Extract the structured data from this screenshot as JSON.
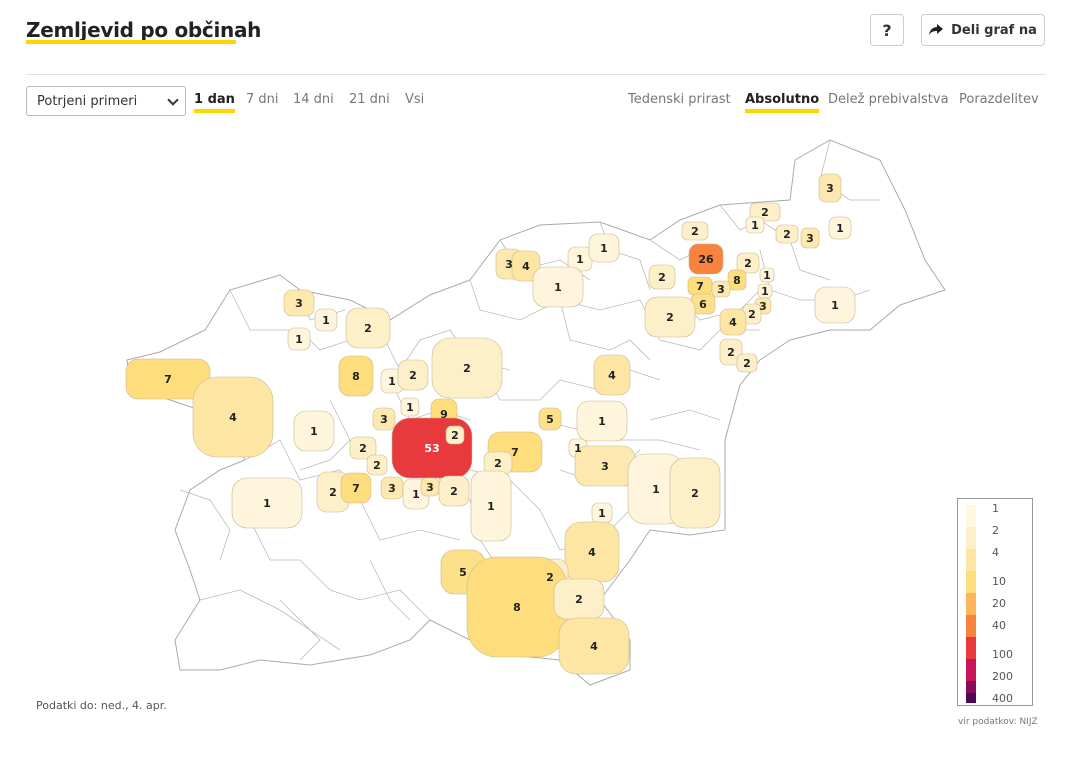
{
  "header": {
    "title": "Zemljevid po občinah",
    "help_label": "?",
    "share_label": "Deli graf na"
  },
  "controls": {
    "select_value": "Potrjeni primeri",
    "periods": [
      "1 dan",
      "7 dni",
      "14 dni",
      "21 dni",
      "Vsi"
    ],
    "active_period": "1 dan",
    "modes": [
      "Tedenski prirast",
      "Absolutno",
      "Delež prebivalstva",
      "Porazdelitev"
    ],
    "active_mode": "Absolutno"
  },
  "legend": {
    "labels": [
      "1",
      "2",
      "4",
      "10",
      "20",
      "40",
      "100",
      "200",
      "400"
    ],
    "colors": [
      "#fff7e0",
      "#fdf0c8",
      "#fde6a3",
      "#fedd7c",
      "#fdb75a",
      "#f8833e",
      "#e83a3c",
      "#c8145a",
      "#8a0a5c",
      "#4a0a55"
    ]
  },
  "footer": {
    "data_date": "Podatki do: ned., 4. apr.",
    "source": "vir podatkov: NIJZ"
  },
  "map_values": [
    {
      "v": "3",
      "c": "#fde9b0"
    },
    {
      "v": "2",
      "c": "#fdf0c8"
    },
    {
      "v": "1",
      "c": "#fff4dc"
    },
    {
      "v": "2",
      "c": "#fdf0c8"
    },
    {
      "v": "3",
      "c": "#fde9b0"
    },
    {
      "v": "1",
      "c": "#fff4dc"
    },
    {
      "v": "2",
      "c": "#fdf0c8"
    },
    {
      "v": "26",
      "c": "#f8833e"
    },
    {
      "v": "2",
      "c": "#fdf0c8"
    },
    {
      "v": "8",
      "c": "#fedd7c"
    },
    {
      "v": "7",
      "c": "#fedd7c"
    },
    {
      "v": "3",
      "c": "#fde9b0"
    },
    {
      "v": "1",
      "c": "#fff4dc"
    },
    {
      "v": "1",
      "c": "#fff4dc"
    },
    {
      "v": "3",
      "c": "#fde9b0"
    },
    {
      "v": "6",
      "c": "#fde08a"
    },
    {
      "v": "2",
      "c": "#fdf0c8"
    },
    {
      "v": "4",
      "c": "#fde6a3"
    },
    {
      "v": "2",
      "c": "#fdf0c8"
    },
    {
      "v": "2",
      "c": "#fdf0c8"
    },
    {
      "v": "1",
      "c": "#fff4dc"
    },
    {
      "v": "2",
      "c": "#fdf0c8"
    },
    {
      "v": "2",
      "c": "#fdf0c8"
    },
    {
      "v": "3",
      "c": "#fde9b0"
    },
    {
      "v": "4",
      "c": "#fde6a3"
    },
    {
      "v": "1",
      "c": "#fff4dc"
    },
    {
      "v": "1",
      "c": "#fff4dc"
    },
    {
      "v": "1",
      "c": "#fff4dc"
    },
    {
      "v": "3",
      "c": "#fde9b0"
    },
    {
      "v": "1",
      "c": "#fff4dc"
    },
    {
      "v": "1",
      "c": "#fff4dc"
    },
    {
      "v": "2",
      "c": "#fdf0c8"
    },
    {
      "v": "8",
      "c": "#fedd7c"
    },
    {
      "v": "1",
      "c": "#fff4dc"
    },
    {
      "v": "2",
      "c": "#fdf0c8"
    },
    {
      "v": "2",
      "c": "#fdf0c8"
    },
    {
      "v": "4",
      "c": "#fde6a3"
    },
    {
      "v": "7",
      "c": "#fedd7c"
    },
    {
      "v": "4",
      "c": "#fde6a3"
    },
    {
      "v": "3",
      "c": "#fde9b0"
    },
    {
      "v": "1",
      "c": "#fff4dc"
    },
    {
      "v": "9",
      "c": "#fedd7c"
    },
    {
      "v": "5",
      "c": "#fde08a"
    },
    {
      "v": "1",
      "c": "#fff4dc"
    },
    {
      "v": "53",
      "c": "#e83a3c"
    },
    {
      "v": "2",
      "c": "#fdf0c8"
    },
    {
      "v": "7",
      "c": "#fedd7c"
    },
    {
      "v": "1",
      "c": "#fff4dc"
    },
    {
      "v": "3",
      "c": "#fde9b0"
    },
    {
      "v": "2",
      "c": "#fdf0c8"
    },
    {
      "v": "2",
      "c": "#fdf0c8"
    },
    {
      "v": "2",
      "c": "#fdf0c8"
    },
    {
      "v": "2",
      "c": "#fdf0c8"
    },
    {
      "v": "7",
      "c": "#fedd7c"
    },
    {
      "v": "3",
      "c": "#fde9b0"
    },
    {
      "v": "1",
      "c": "#fff4dc"
    },
    {
      "v": "3",
      "c": "#fde9b0"
    },
    {
      "v": "2",
      "c": "#fdf0c8"
    },
    {
      "v": "1",
      "c": "#fff4dc"
    },
    {
      "v": "1",
      "c": "#fff4dc"
    },
    {
      "v": "1",
      "c": "#fff4dc"
    },
    {
      "v": "1",
      "c": "#fff4dc"
    },
    {
      "v": "2",
      "c": "#fdf0c8"
    },
    {
      "v": "1",
      "c": "#fff4dc"
    },
    {
      "v": "4",
      "c": "#fde6a3"
    },
    {
      "v": "5",
      "c": "#fde08a"
    },
    {
      "v": "2",
      "c": "#fdf0c8"
    },
    {
      "v": "8",
      "c": "#fedd7c"
    },
    {
      "v": "2",
      "c": "#fdf0c8"
    },
    {
      "v": "4",
      "c": "#fde6a3"
    }
  ]
}
